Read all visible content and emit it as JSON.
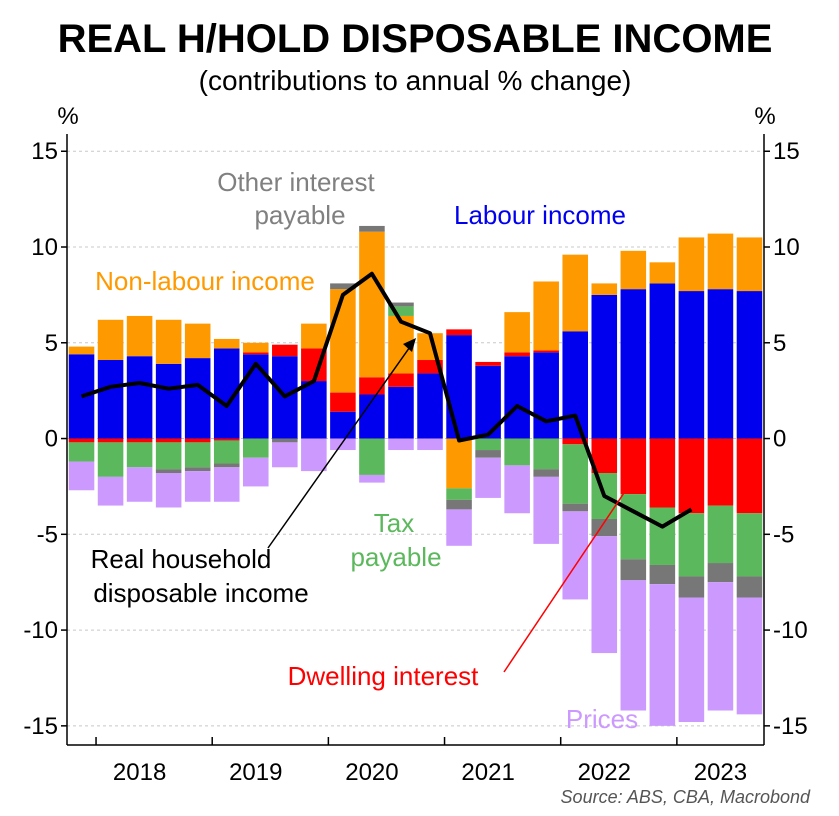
{
  "chart_data": {
    "type": "bar",
    "title": "REAL H/HOLD DISPOSABLE INCOME",
    "subtitle": "(contributions to annual % change)",
    "y_unit_left": "%",
    "y_unit_right": "%",
    "ylim": [
      -16,
      15.9
    ],
    "yticks": [
      15,
      10,
      5,
      0,
      -5,
      -10,
      -15
    ],
    "ytick_labels": [
      "15",
      "10",
      "5",
      "0",
      "-5",
      "-10",
      "-15"
    ],
    "x_years": [
      "2018",
      "2019",
      "2020",
      "2021",
      "2022",
      "2023"
    ],
    "x": [
      "Sep-2017",
      "Dec-2017",
      "Mar-2018",
      "Jun-2018",
      "Sep-2018",
      "Dec-2018",
      "Mar-2019",
      "Jun-2019",
      "Sep-2019",
      "Dec-2019",
      "Mar-2020",
      "Jun-2020",
      "Sep-2020",
      "Dec-2020",
      "Mar-2021",
      "Jun-2021",
      "Sep-2021",
      "Dec-2021",
      "Mar-2022",
      "Jun-2022",
      "Sep-2022",
      "Dec-2022",
      "Mar-2023",
      "Jun-2023"
    ],
    "grid": true,
    "series": [
      {
        "name": "Labour income",
        "color": "#0000ee",
        "values": [
          4.4,
          4.1,
          4.3,
          3.9,
          4.2,
          4.7,
          4.4,
          4.3,
          3.0,
          1.4,
          2.3,
          2.7,
          3.4,
          5.4,
          3.8,
          4.3,
          4.5,
          5.6,
          7.5,
          7.8,
          8.1,
          7.7,
          7.8,
          7.7
        ]
      },
      {
        "name": "Dwelling interest",
        "color": "#ff0000",
        "values": [
          -0.2,
          -0.2,
          -0.2,
          -0.2,
          -0.2,
          -0.1,
          0.1,
          0.6,
          1.7,
          1.0,
          0.9,
          0.7,
          0.7,
          0.3,
          0.2,
          0.2,
          0.1,
          -0.3,
          -1.8,
          -2.9,
          -3.6,
          -3.9,
          -3.5,
          -3.9
        ]
      },
      {
        "name": "Non-labour income",
        "color": "#ff9900",
        "values": [
          0.4,
          2.1,
          2.1,
          2.3,
          1.8,
          0.5,
          0.5,
          0.0,
          1.3,
          5.4,
          7.6,
          3.0,
          1.4,
          -2.6,
          0.0,
          2.1,
          3.6,
          4.0,
          0.6,
          2.0,
          1.1,
          2.8,
          2.9,
          2.8
        ]
      },
      {
        "name": "Tax payable",
        "color": "#5cb85c",
        "values": [
          -1.0,
          -1.8,
          -1.3,
          -1.4,
          -1.3,
          -1.2,
          -1.0,
          0.0,
          0.0,
          0.0,
          -1.9,
          0.5,
          0.0,
          -0.6,
          -0.6,
          -1.4,
          -1.6,
          -3.1,
          -2.4,
          -3.4,
          -3.0,
          -3.3,
          -3.0,
          -3.3
        ]
      },
      {
        "name": "Other interest payable",
        "color": "#777777",
        "values": [
          0.0,
          0.0,
          0.0,
          -0.2,
          -0.2,
          -0.2,
          0.0,
          -0.2,
          0.0,
          0.3,
          0.3,
          0.2,
          0.0,
          -0.5,
          -0.4,
          0.0,
          -0.4,
          -0.4,
          -0.9,
          -1.1,
          -1.0,
          -1.1,
          -1.0,
          -1.1
        ]
      },
      {
        "name": "Prices",
        "color": "#cc99ff",
        "values": [
          -1.5,
          -1.5,
          -1.8,
          -1.8,
          -1.6,
          -1.8,
          -1.5,
          -1.3,
          -1.7,
          -0.6,
          -0.4,
          -0.6,
          -0.6,
          -1.9,
          -2.1,
          -2.5,
          -3.5,
          -4.6,
          -6.1,
          -6.8,
          -7.4,
          -6.5,
          -6.7,
          -6.1
        ]
      }
    ],
    "line": {
      "name": "Real household disposable income",
      "color": "#000000",
      "values": [
        2.2,
        2.7,
        2.9,
        2.6,
        2.8,
        1.7,
        3.9,
        2.2,
        3.0,
        7.5,
        8.6,
        6.1,
        5.5,
        -0.1,
        0.2,
        1.7,
        0.9,
        1.2,
        -3.0,
        -3.8,
        -4.6,
        -3.7,
        null,
        null
      ]
    },
    "annotations": {
      "other_interest_line1": "Other interest",
      "other_interest_line2": "payable",
      "labour_income": "Labour income",
      "non_labour_income": "Non-labour income",
      "tax_line1": "Tax",
      "tax_line2": "payable",
      "rhdi_line1": "Real household",
      "rhdi_line2": "disposable income",
      "dwelling_interest": "Dwelling interest",
      "prices": "Prices"
    },
    "source": "Source: ABS, CBA, Macrobond"
  }
}
